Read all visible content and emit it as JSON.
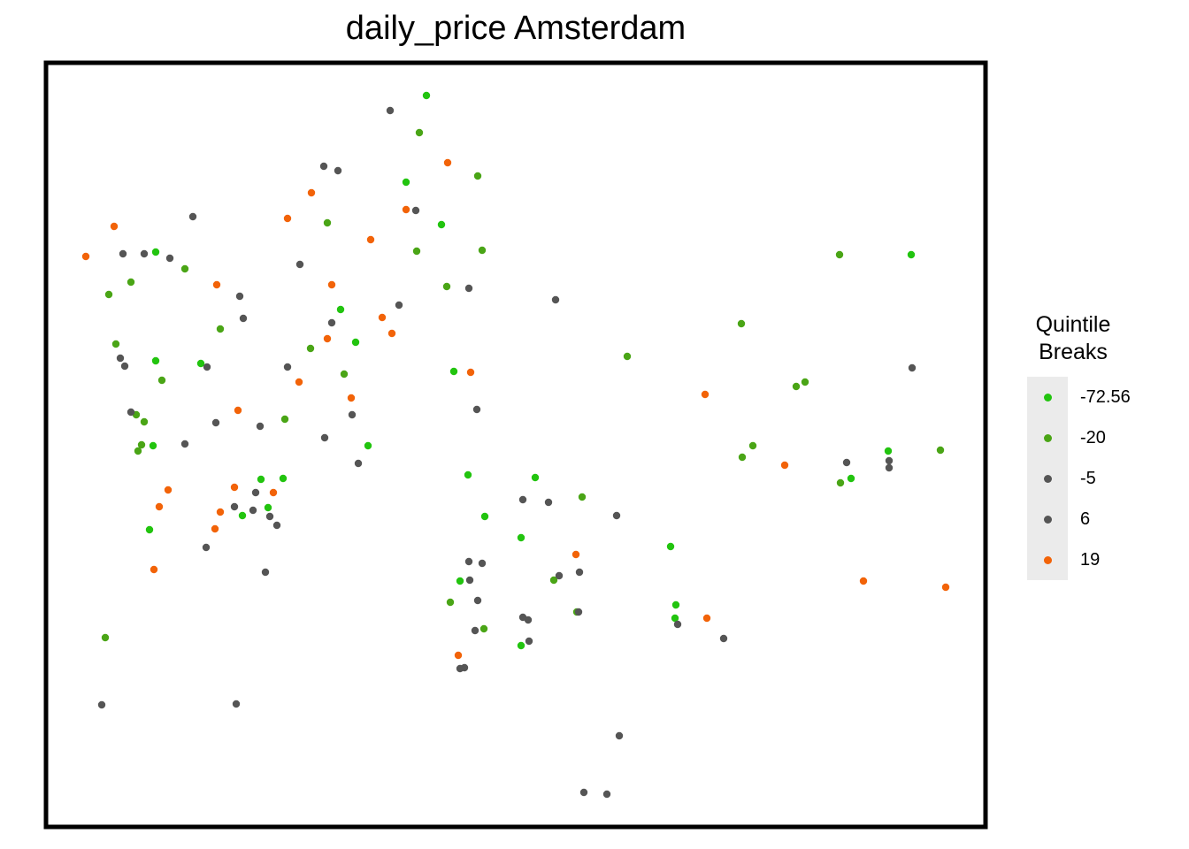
{
  "chart_data": {
    "type": "scatter",
    "title": "daily_price Amsterdam",
    "xlabel": "",
    "ylabel": "",
    "grid": false,
    "axes_shown": false,
    "legend": {
      "title_lines": [
        "Quintile",
        "Breaks"
      ],
      "placement": "right",
      "entries": [
        {
          "label": "-72.56",
          "color": "#22c40f"
        },
        {
          "label": "-20",
          "color": "#4aa516"
        },
        {
          "label": "-5",
          "color": "#555555"
        },
        {
          "label": "6",
          "color": "#555555"
        },
        {
          "label": "19",
          "color": "#f26308"
        }
      ]
    },
    "series": [
      {
        "class": 0,
        "color": "#22c40f",
        "points": [
          [
            482,
            108
          ],
          [
            459,
            206
          ],
          [
            499,
            254
          ],
          [
            1030,
            288
          ],
          [
            176,
            285
          ],
          [
            385,
            350
          ],
          [
            402,
            387
          ],
          [
            176,
            408
          ],
          [
            227,
            411
          ],
          [
            513,
            420
          ],
          [
            173,
            504
          ],
          [
            416,
            504
          ],
          [
            529,
            537
          ],
          [
            605,
            540
          ],
          [
            295,
            542
          ],
          [
            320,
            541
          ],
          [
            548,
            584
          ],
          [
            303,
            574
          ],
          [
            274,
            583
          ],
          [
            589,
            608
          ],
          [
            169,
            599
          ],
          [
            758,
            618
          ],
          [
            520,
            657
          ],
          [
            764,
            684
          ],
          [
            763,
            699
          ],
          [
            589,
            730
          ],
          [
            1004,
            510
          ],
          [
            962,
            541
          ]
        ]
      },
      {
        "class": 1,
        "color": "#4aa516",
        "points": [
          [
            474,
            150
          ],
          [
            540,
            199
          ],
          [
            370,
            252
          ],
          [
            471,
            284
          ],
          [
            545,
            283
          ],
          [
            209,
            304
          ],
          [
            148,
            319
          ],
          [
            123,
            333
          ],
          [
            505,
            324
          ],
          [
            249,
            372
          ],
          [
            131,
            389
          ],
          [
            351,
            394
          ],
          [
            389,
            423
          ],
          [
            183,
            430
          ],
          [
            838,
            366
          ],
          [
            709,
            403
          ],
          [
            910,
            432
          ],
          [
            900,
            437
          ],
          [
            154,
            469
          ],
          [
            163,
            477
          ],
          [
            322,
            474
          ],
          [
            160,
            503
          ],
          [
            156,
            510
          ],
          [
            839,
            517
          ],
          [
            851,
            504
          ],
          [
            949,
            288
          ],
          [
            1063,
            509
          ],
          [
            950,
            546
          ],
          [
            658,
            562
          ],
          [
            626,
            656
          ],
          [
            509,
            681
          ],
          [
            547,
            711
          ],
          [
            652,
            692
          ],
          [
            119,
            721
          ]
        ]
      },
      {
        "class": 2,
        "color": "#555555",
        "points": [
          [
            441,
            125
          ],
          [
            366,
            188
          ],
          [
            382,
            193
          ],
          [
            470,
            238
          ],
          [
            218,
            245
          ],
          [
            139,
            287
          ],
          [
            163,
            287
          ],
          [
            192,
            292
          ],
          [
            339,
            299
          ],
          [
            271,
            335
          ],
          [
            275,
            360
          ],
          [
            375,
            365
          ],
          [
            451,
            345
          ],
          [
            530,
            326
          ],
          [
            628,
            339
          ],
          [
            136,
            405
          ],
          [
            141,
            414
          ],
          [
            234,
            415
          ],
          [
            325,
            415
          ],
          [
            148,
            466
          ],
          [
            244,
            478
          ],
          [
            294,
            482
          ],
          [
            367,
            495
          ],
          [
            398,
            469
          ],
          [
            539,
            463
          ],
          [
            209,
            502
          ],
          [
            405,
            524
          ],
          [
            1031,
            416
          ],
          [
            957,
            523
          ],
          [
            1005,
            521
          ],
          [
            1005,
            529
          ]
        ]
      },
      {
        "class": 3,
        "color": "#555555",
        "points": [
          [
            289,
            557
          ],
          [
            265,
            573
          ],
          [
            286,
            577
          ],
          [
            305,
            584
          ],
          [
            313,
            594
          ],
          [
            233,
            619
          ],
          [
            300,
            647
          ],
          [
            591,
            565
          ],
          [
            620,
            568
          ],
          [
            697,
            583
          ],
          [
            530,
            635
          ],
          [
            545,
            637
          ],
          [
            531,
            656
          ],
          [
            632,
            651
          ],
          [
            655,
            647
          ],
          [
            540,
            679
          ],
          [
            591,
            698
          ],
          [
            597,
            701
          ],
          [
            537,
            713
          ],
          [
            598,
            725
          ],
          [
            654,
            692
          ],
          [
            766,
            706
          ],
          [
            818,
            722
          ],
          [
            525,
            755
          ],
          [
            520,
            756
          ],
          [
            115,
            797
          ],
          [
            267,
            796
          ],
          [
            700,
            832
          ],
          [
            660,
            896
          ],
          [
            686,
            898
          ]
        ]
      },
      {
        "class": 4,
        "color": "#f26308",
        "points": [
          [
            129,
            256
          ],
          [
            97,
            290
          ],
          [
            506,
            184
          ],
          [
            352,
            218
          ],
          [
            459,
            237
          ],
          [
            325,
            247
          ],
          [
            419,
            271
          ],
          [
            245,
            322
          ],
          [
            375,
            322
          ],
          [
            432,
            359
          ],
          [
            443,
            377
          ],
          [
            370,
            383
          ],
          [
            532,
            421
          ],
          [
            338,
            432
          ],
          [
            397,
            450
          ],
          [
            269,
            464
          ],
          [
            797,
            446
          ],
          [
            887,
            526
          ],
          [
            190,
            554
          ],
          [
            265,
            551
          ],
          [
            309,
            557
          ],
          [
            180,
            573
          ],
          [
            249,
            579
          ],
          [
            243,
            598
          ],
          [
            174,
            644
          ],
          [
            651,
            627
          ],
          [
            976,
            657
          ],
          [
            1069,
            664
          ],
          [
            799,
            699
          ],
          [
            518,
            741
          ]
        ]
      }
    ]
  }
}
